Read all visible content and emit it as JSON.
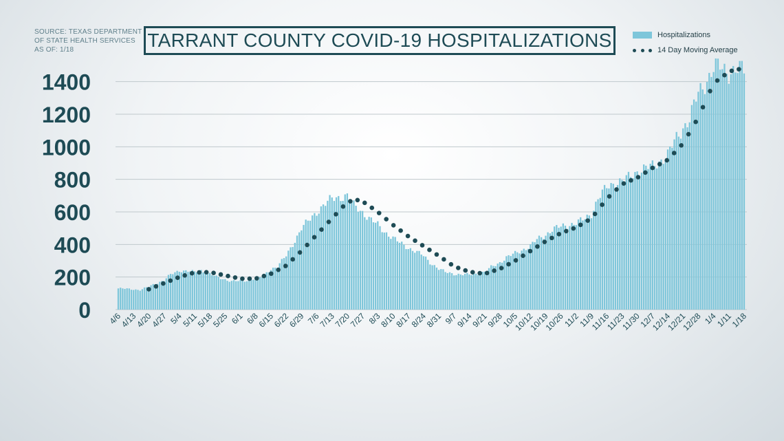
{
  "source": {
    "line1": "SOURCE: TEXAS DEPARTMENT",
    "line2": "OF STATE HEALTH SERVICES",
    "line3": "AS OF: 1/18"
  },
  "colors": {
    "bar": "#7ec6da",
    "dots": "#1e4b55",
    "axis_text": "#1e4b55",
    "grid": "#bfc8cc"
  },
  "chart_data": {
    "type": "bar",
    "title": "TARRANT COUNTY COVID-19 HOSPITALIZATIONS",
    "xlabel": "",
    "ylabel": "",
    "ylim": [
      0,
      1500
    ],
    "yticks": [
      0,
      200,
      400,
      600,
      800,
      1000,
      1200,
      1400
    ],
    "grid": true,
    "legend_position": "top-right",
    "x_start": "4/6",
    "x_end": "1/18",
    "x_ticks": [
      "4/6",
      "4/13",
      "4/20",
      "4/27",
      "5/4",
      "5/11",
      "5/18",
      "5/25",
      "6/1",
      "6/8",
      "6/15",
      "6/22",
      "6/29",
      "7/6",
      "7/13",
      "7/20",
      "7/27",
      "8/3",
      "8/10",
      "8/17",
      "8/24",
      "8/31",
      "9/7",
      "9/14",
      "9/21",
      "9/28",
      "10/5",
      "10/12",
      "10/19",
      "10/26",
      "11/2",
      "11/9",
      "11/16",
      "11/23",
      "11/30",
      "12/7",
      "12/14",
      "12/21",
      "12/28",
      "1/4",
      "1/11",
      "1/18"
    ],
    "weekly_hospitalizations": [
      130,
      125,
      155,
      200,
      240,
      230,
      220,
      185,
      175,
      195,
      250,
      330,
      500,
      600,
      680,
      680,
      600,
      520,
      440,
      380,
      330,
      250,
      220,
      215,
      230,
      290,
      345,
      390,
      460,
      510,
      530,
      590,
      750,
      790,
      850,
      880,
      950,
      1120,
      1330,
      1480,
      1460,
      1470
    ],
    "series": [
      {
        "name": "Hospitalizations",
        "kind": "daily_bars",
        "points": [
          [
            "4/6",
            130
          ],
          [
            "4/9",
            128
          ],
          [
            "4/13",
            125
          ],
          [
            "4/16",
            120
          ],
          [
            "4/20",
            140
          ],
          [
            "4/23",
            160
          ],
          [
            "4/27",
            180
          ],
          [
            "4/30",
            215
          ],
          [
            "5/4",
            240
          ],
          [
            "5/7",
            238
          ],
          [
            "5/11",
            230
          ],
          [
            "5/14",
            240
          ],
          [
            "5/18",
            220
          ],
          [
            "5/21",
            200
          ],
          [
            "5/25",
            185
          ],
          [
            "5/28",
            175
          ],
          [
            "6/1",
            175
          ],
          [
            "6/4",
            178
          ],
          [
            "6/8",
            195
          ],
          [
            "6/11",
            200
          ],
          [
            "6/15",
            250
          ],
          [
            "6/18",
            265
          ],
          [
            "6/22",
            330
          ],
          [
            "6/25",
            400
          ],
          [
            "6/29",
            500
          ],
          [
            "7/2",
            540
          ],
          [
            "7/6",
            600
          ],
          [
            "7/9",
            640
          ],
          [
            "7/13",
            680
          ],
          [
            "7/16",
            690
          ],
          [
            "7/20",
            700
          ],
          [
            "7/23",
            640
          ],
          [
            "7/27",
            600
          ],
          [
            "7/30",
            560
          ],
          [
            "8/3",
            520
          ],
          [
            "8/6",
            480
          ],
          [
            "8/10",
            440
          ],
          [
            "8/13",
            410
          ],
          [
            "8/17",
            380
          ],
          [
            "8/20",
            360
          ],
          [
            "8/24",
            330
          ],
          [
            "8/27",
            290
          ],
          [
            "8/31",
            250
          ],
          [
            "9/3",
            230
          ],
          [
            "9/7",
            220
          ],
          [
            "9/10",
            215
          ],
          [
            "9/14",
            215
          ],
          [
            "9/17",
            220
          ],
          [
            "9/21",
            230
          ],
          [
            "9/24",
            260
          ],
          [
            "9/28",
            290
          ],
          [
            "10/1",
            320
          ],
          [
            "10/5",
            345
          ],
          [
            "10/8",
            365
          ],
          [
            "10/12",
            390
          ],
          [
            "10/15",
            430
          ],
          [
            "10/19",
            460
          ],
          [
            "10/22",
            490
          ],
          [
            "10/26",
            510
          ],
          [
            "10/29",
            520
          ],
          [
            "11/2",
            530
          ],
          [
            "11/5",
            550
          ],
          [
            "11/9",
            590
          ],
          [
            "11/12",
            680
          ],
          [
            "11/16",
            750
          ],
          [
            "11/19",
            775
          ],
          [
            "11/23",
            790
          ],
          [
            "11/26",
            810
          ],
          [
            "11/30",
            850
          ],
          [
            "12/3",
            865
          ],
          [
            "12/7",
            880
          ],
          [
            "12/10",
            910
          ],
          [
            "12/14",
            950
          ],
          [
            "12/17",
            1030
          ],
          [
            "12/21",
            1120
          ],
          [
            "12/24",
            1170
          ],
          [
            "12/28",
            1330
          ],
          [
            "12/31",
            1390
          ],
          [
            "1/4",
            1480
          ],
          [
            "1/7",
            1490
          ],
          [
            "1/11",
            1460
          ],
          [
            "1/14",
            1470
          ],
          [
            "1/18",
            1470
          ]
        ]
      },
      {
        "name": "14 Day Moving Average",
        "kind": "dotted_line",
        "points": [
          [
            "4/20",
            125
          ],
          [
            "5/4",
            200
          ],
          [
            "5/11",
            228
          ],
          [
            "5/18",
            230
          ],
          [
            "5/25",
            210
          ],
          [
            "6/1",
            190
          ],
          [
            "6/8",
            190
          ],
          [
            "6/15",
            220
          ],
          [
            "6/22",
            270
          ],
          [
            "6/29",
            360
          ],
          [
            "7/6",
            460
          ],
          [
            "7/13",
            560
          ],
          [
            "7/20",
            660
          ],
          [
            "7/24",
            675
          ],
          [
            "7/27",
            665
          ],
          [
            "8/3",
            600
          ],
          [
            "8/10",
            520
          ],
          [
            "8/17",
            450
          ],
          [
            "8/24",
            390
          ],
          [
            "8/31",
            330
          ],
          [
            "9/7",
            265
          ],
          [
            "9/14",
            232
          ],
          [
            "9/21",
            220
          ],
          [
            "9/28",
            250
          ],
          [
            "10/5",
            300
          ],
          [
            "10/12",
            360
          ],
          [
            "10/19",
            420
          ],
          [
            "10/26",
            470
          ],
          [
            "11/2",
            505
          ],
          [
            "11/9",
            560
          ],
          [
            "11/16",
            680
          ],
          [
            "11/23",
            770
          ],
          [
            "11/30",
            810
          ],
          [
            "12/7",
            870
          ],
          [
            "12/14",
            920
          ],
          [
            "12/21",
            1020
          ],
          [
            "12/28",
            1180
          ],
          [
            "1/4",
            1390
          ],
          [
            "1/11",
            1460
          ],
          [
            "1/14",
            1475
          ],
          [
            "1/18",
            1478
          ]
        ]
      }
    ]
  }
}
